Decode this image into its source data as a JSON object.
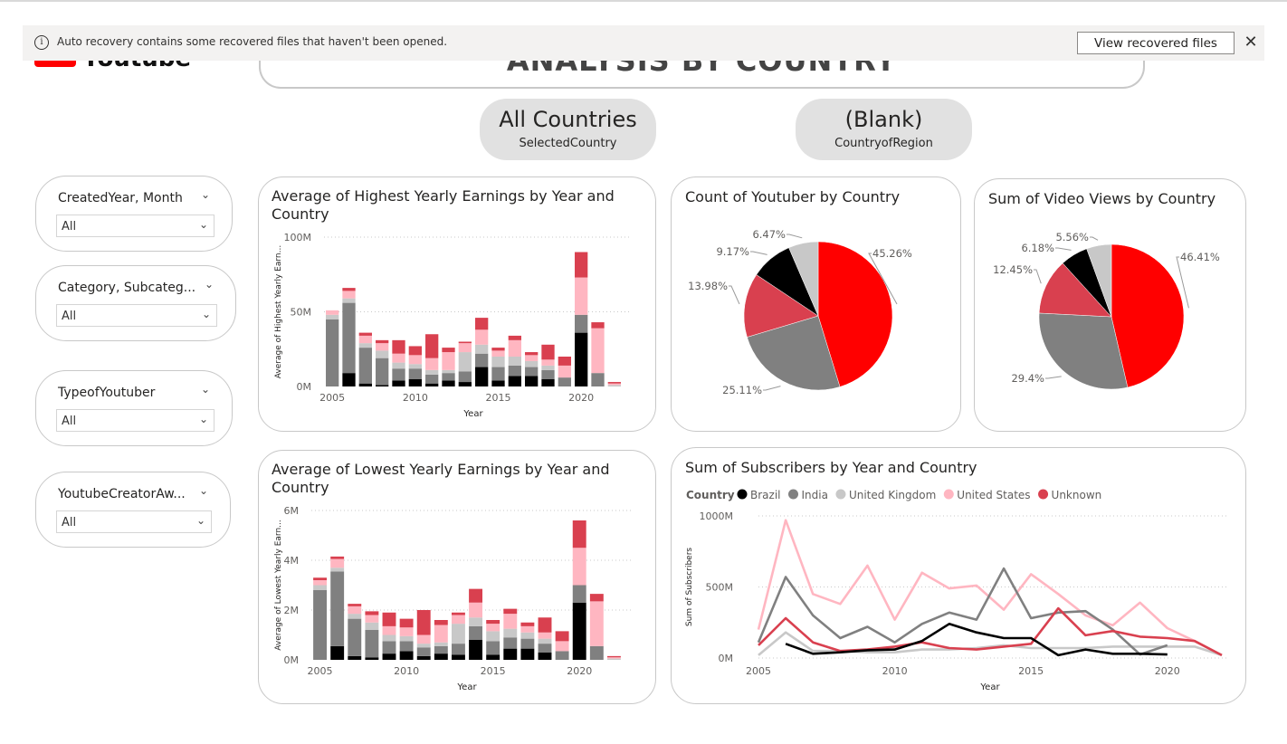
{
  "notification": {
    "message": "Auto recovery contains some recovered files that haven't been opened.",
    "button": "View recovered files"
  },
  "logo": {
    "text": "Youtube"
  },
  "page_title": "ANALYSIS BY COUNTRY",
  "cards": [
    {
      "value": "All Countries",
      "label": "SelectedCountry"
    },
    {
      "value": "(Blank)",
      "label": "CountryofRegion"
    }
  ],
  "slicers": [
    {
      "title": "CreatedYear, Month",
      "value": "All"
    },
    {
      "title": "Category, Subcateg...",
      "value": "All"
    },
    {
      "title": "TypeofYoutuber",
      "value": "All"
    },
    {
      "title": "YoutubeCreatorAw...",
      "value": "All"
    }
  ],
  "colors": {
    "Brazil": "#000000",
    "India": "#808080",
    "United Kingdom": "#c8c8c8",
    "United States": "#ffb6c1",
    "Unknown": "#d9404f",
    "accent_red": "#ff0000"
  },
  "chart_data": [
    {
      "id": "highest",
      "type": "bar",
      "stacked": true,
      "title": "Average of Highest Yearly Earnings by Year and Country",
      "xlabel": "Year",
      "ylabel": "Average of Highest Yearly Earn...",
      "ylim": [
        0,
        100
      ],
      "yticks": [
        "0M",
        "50M",
        "100M"
      ],
      "xticks": [
        "2005",
        "2010",
        "2015",
        "2020"
      ],
      "grid": true,
      "categories": [
        "2005",
        "2006",
        "2007",
        "2008",
        "2009",
        "2010",
        "2011",
        "2012",
        "2013",
        "2014",
        "2015",
        "2016",
        "2017",
        "2018",
        "2019",
        "2020",
        "2021",
        "2022"
      ],
      "series": [
        {
          "name": "Brazil",
          "values": [
            0,
            9,
            2,
            1,
            4,
            5,
            2,
            4,
            3,
            13,
            4,
            7,
            7,
            5,
            0,
            36,
            0,
            0
          ]
        },
        {
          "name": "India",
          "values": [
            45,
            47,
            24,
            18,
            8,
            7,
            6,
            5,
            7,
            9,
            9,
            7,
            6,
            6,
            6,
            12,
            9,
            0
          ]
        },
        {
          "name": "United Kingdom",
          "values": [
            3,
            3,
            3,
            5,
            4,
            3,
            3,
            2,
            13,
            6,
            7,
            6,
            4,
            3,
            0,
            0,
            0,
            1
          ]
        },
        {
          "name": "United States",
          "values": [
            3,
            5,
            5,
            5,
            6,
            6,
            8,
            12,
            6,
            10,
            4,
            11,
            4,
            4,
            8,
            25,
            30,
            1
          ]
        },
        {
          "name": "Unknown",
          "values": [
            0,
            2,
            2,
            2,
            9,
            6,
            16,
            3,
            1,
            8,
            2,
            3,
            2,
            10,
            6,
            17,
            4,
            1
          ]
        }
      ]
    },
    {
      "id": "lowest",
      "type": "bar",
      "stacked": true,
      "title": "Average of Lowest Yearly Earnings by Year and Country",
      "xlabel": "Year",
      "ylabel": "Average of Lowest Yearly Earn...",
      "ylim": [
        0,
        6
      ],
      "yticks": [
        "0M",
        "2M",
        "4M",
        "6M"
      ],
      "xticks": [
        "2005",
        "2010",
        "2015",
        "2020"
      ],
      "grid": true,
      "categories": [
        "2005",
        "2006",
        "2007",
        "2008",
        "2009",
        "2010",
        "2011",
        "2012",
        "2013",
        "2014",
        "2015",
        "2016",
        "2017",
        "2018",
        "2019",
        "2020",
        "2021",
        "2022"
      ],
      "series": [
        {
          "name": "Brazil",
          "values": [
            0,
            0.55,
            0.15,
            0.1,
            0.25,
            0.35,
            0.15,
            0.25,
            0.2,
            0.8,
            0.2,
            0.45,
            0.45,
            0.3,
            0,
            2.3,
            0,
            0
          ]
        },
        {
          "name": "India",
          "values": [
            2.8,
            3.0,
            1.5,
            1.1,
            0.5,
            0.4,
            0.35,
            0.3,
            0.45,
            0.55,
            0.55,
            0.45,
            0.4,
            0.35,
            0.35,
            0.7,
            0.55,
            0
          ]
        },
        {
          "name": "United Kingdom",
          "values": [
            0.2,
            0.15,
            0.2,
            0.3,
            0.25,
            0.2,
            0.15,
            0.15,
            0.8,
            0.35,
            0.4,
            0.35,
            0.25,
            0.2,
            0,
            0,
            0,
            0.05
          ]
        },
        {
          "name": "United States",
          "values": [
            0.2,
            0.35,
            0.3,
            0.3,
            0.35,
            0.35,
            0.35,
            0.7,
            0.35,
            0.6,
            0.3,
            0.6,
            0.25,
            0.25,
            0.4,
            1.5,
            1.8,
            0.05
          ]
        },
        {
          "name": "Unknown",
          "values": [
            0.1,
            0.1,
            0.1,
            0.15,
            0.55,
            0.35,
            1.0,
            0.2,
            0.1,
            0.55,
            0.15,
            0.2,
            0.15,
            0.6,
            0.4,
            1.1,
            0.3,
            0.05
          ]
        }
      ]
    },
    {
      "id": "count",
      "type": "pie",
      "title": "Count of Youtuber by Country",
      "slices": [
        {
          "name": "Unknown",
          "value": 45.26,
          "label": "45.26%",
          "color": "#ff0000"
        },
        {
          "name": "India",
          "value": 25.11,
          "label": "25.11%",
          "color": "#808080"
        },
        {
          "name": "United States",
          "value": 13.98,
          "label": "13.98%",
          "color": "#d9404f"
        },
        {
          "name": "Brazil",
          "value": 9.17,
          "label": "9.17%",
          "color": "#000000"
        },
        {
          "name": "United Kingdom",
          "value": 6.47,
          "label": "6.47%",
          "color": "#c8c8c8"
        }
      ]
    },
    {
      "id": "views",
      "type": "pie",
      "title": "Sum of Video Views by Country",
      "slices": [
        {
          "name": "Unknown",
          "value": 46.41,
          "label": "46.41%",
          "color": "#ff0000"
        },
        {
          "name": "India",
          "value": 29.4,
          "label": "29.4%",
          "color": "#808080"
        },
        {
          "name": "United States",
          "value": 12.45,
          "label": "12.45%",
          "color": "#d9404f"
        },
        {
          "name": "Brazil",
          "value": 6.18,
          "label": "6.18%",
          "color": "#000000"
        },
        {
          "name": "United Kingdom",
          "value": 5.56,
          "label": "5.56%",
          "color": "#c8c8c8"
        }
      ]
    },
    {
      "id": "subscribers",
      "type": "line",
      "title": "Sum of Subscribers by Year and Country",
      "legend_title": "Country",
      "legend": [
        "Brazil",
        "India",
        "United Kingdom",
        "United States",
        "Unknown"
      ],
      "xlabel": "Year",
      "ylabel": "Sum of Subscribers",
      "ylim": [
        0,
        1000
      ],
      "yticks": [
        "0M",
        "500M",
        "1000M"
      ],
      "xticks": [
        "2005",
        "2010",
        "2015",
        "2020"
      ],
      "grid": true,
      "x": [
        2005,
        2006,
        2007,
        2008,
        2009,
        2010,
        2011,
        2012,
        2013,
        2014,
        2015,
        2016,
        2017,
        2018,
        2019,
        2020,
        2021,
        2022
      ],
      "series": [
        {
          "name": "Brazil",
          "values": [
            null,
            100,
            30,
            40,
            55,
            60,
            120,
            240,
            180,
            140,
            140,
            20,
            60,
            30,
            30,
            25,
            null,
            null
          ]
        },
        {
          "name": "India",
          "values": [
            110,
            570,
            300,
            140,
            220,
            110,
            240,
            320,
            270,
            630,
            280,
            320,
            330,
            200,
            25,
            90,
            null,
            null
          ]
        },
        {
          "name": "United Kingdom",
          "values": [
            20,
            180,
            50,
            50,
            40,
            40,
            60,
            60,
            70,
            90,
            70,
            70,
            70,
            80,
            80,
            80,
            80,
            20
          ]
        },
        {
          "name": "United States",
          "values": [
            200,
            970,
            450,
            380,
            650,
            270,
            600,
            490,
            510,
            340,
            590,
            450,
            300,
            230,
            390,
            210,
            120,
            20
          ]
        },
        {
          "name": "Unknown",
          "values": [
            90,
            280,
            110,
            50,
            60,
            80,
            110,
            70,
            60,
            80,
            100,
            350,
            160,
            190,
            150,
            140,
            120,
            20
          ]
        }
      ]
    }
  ]
}
